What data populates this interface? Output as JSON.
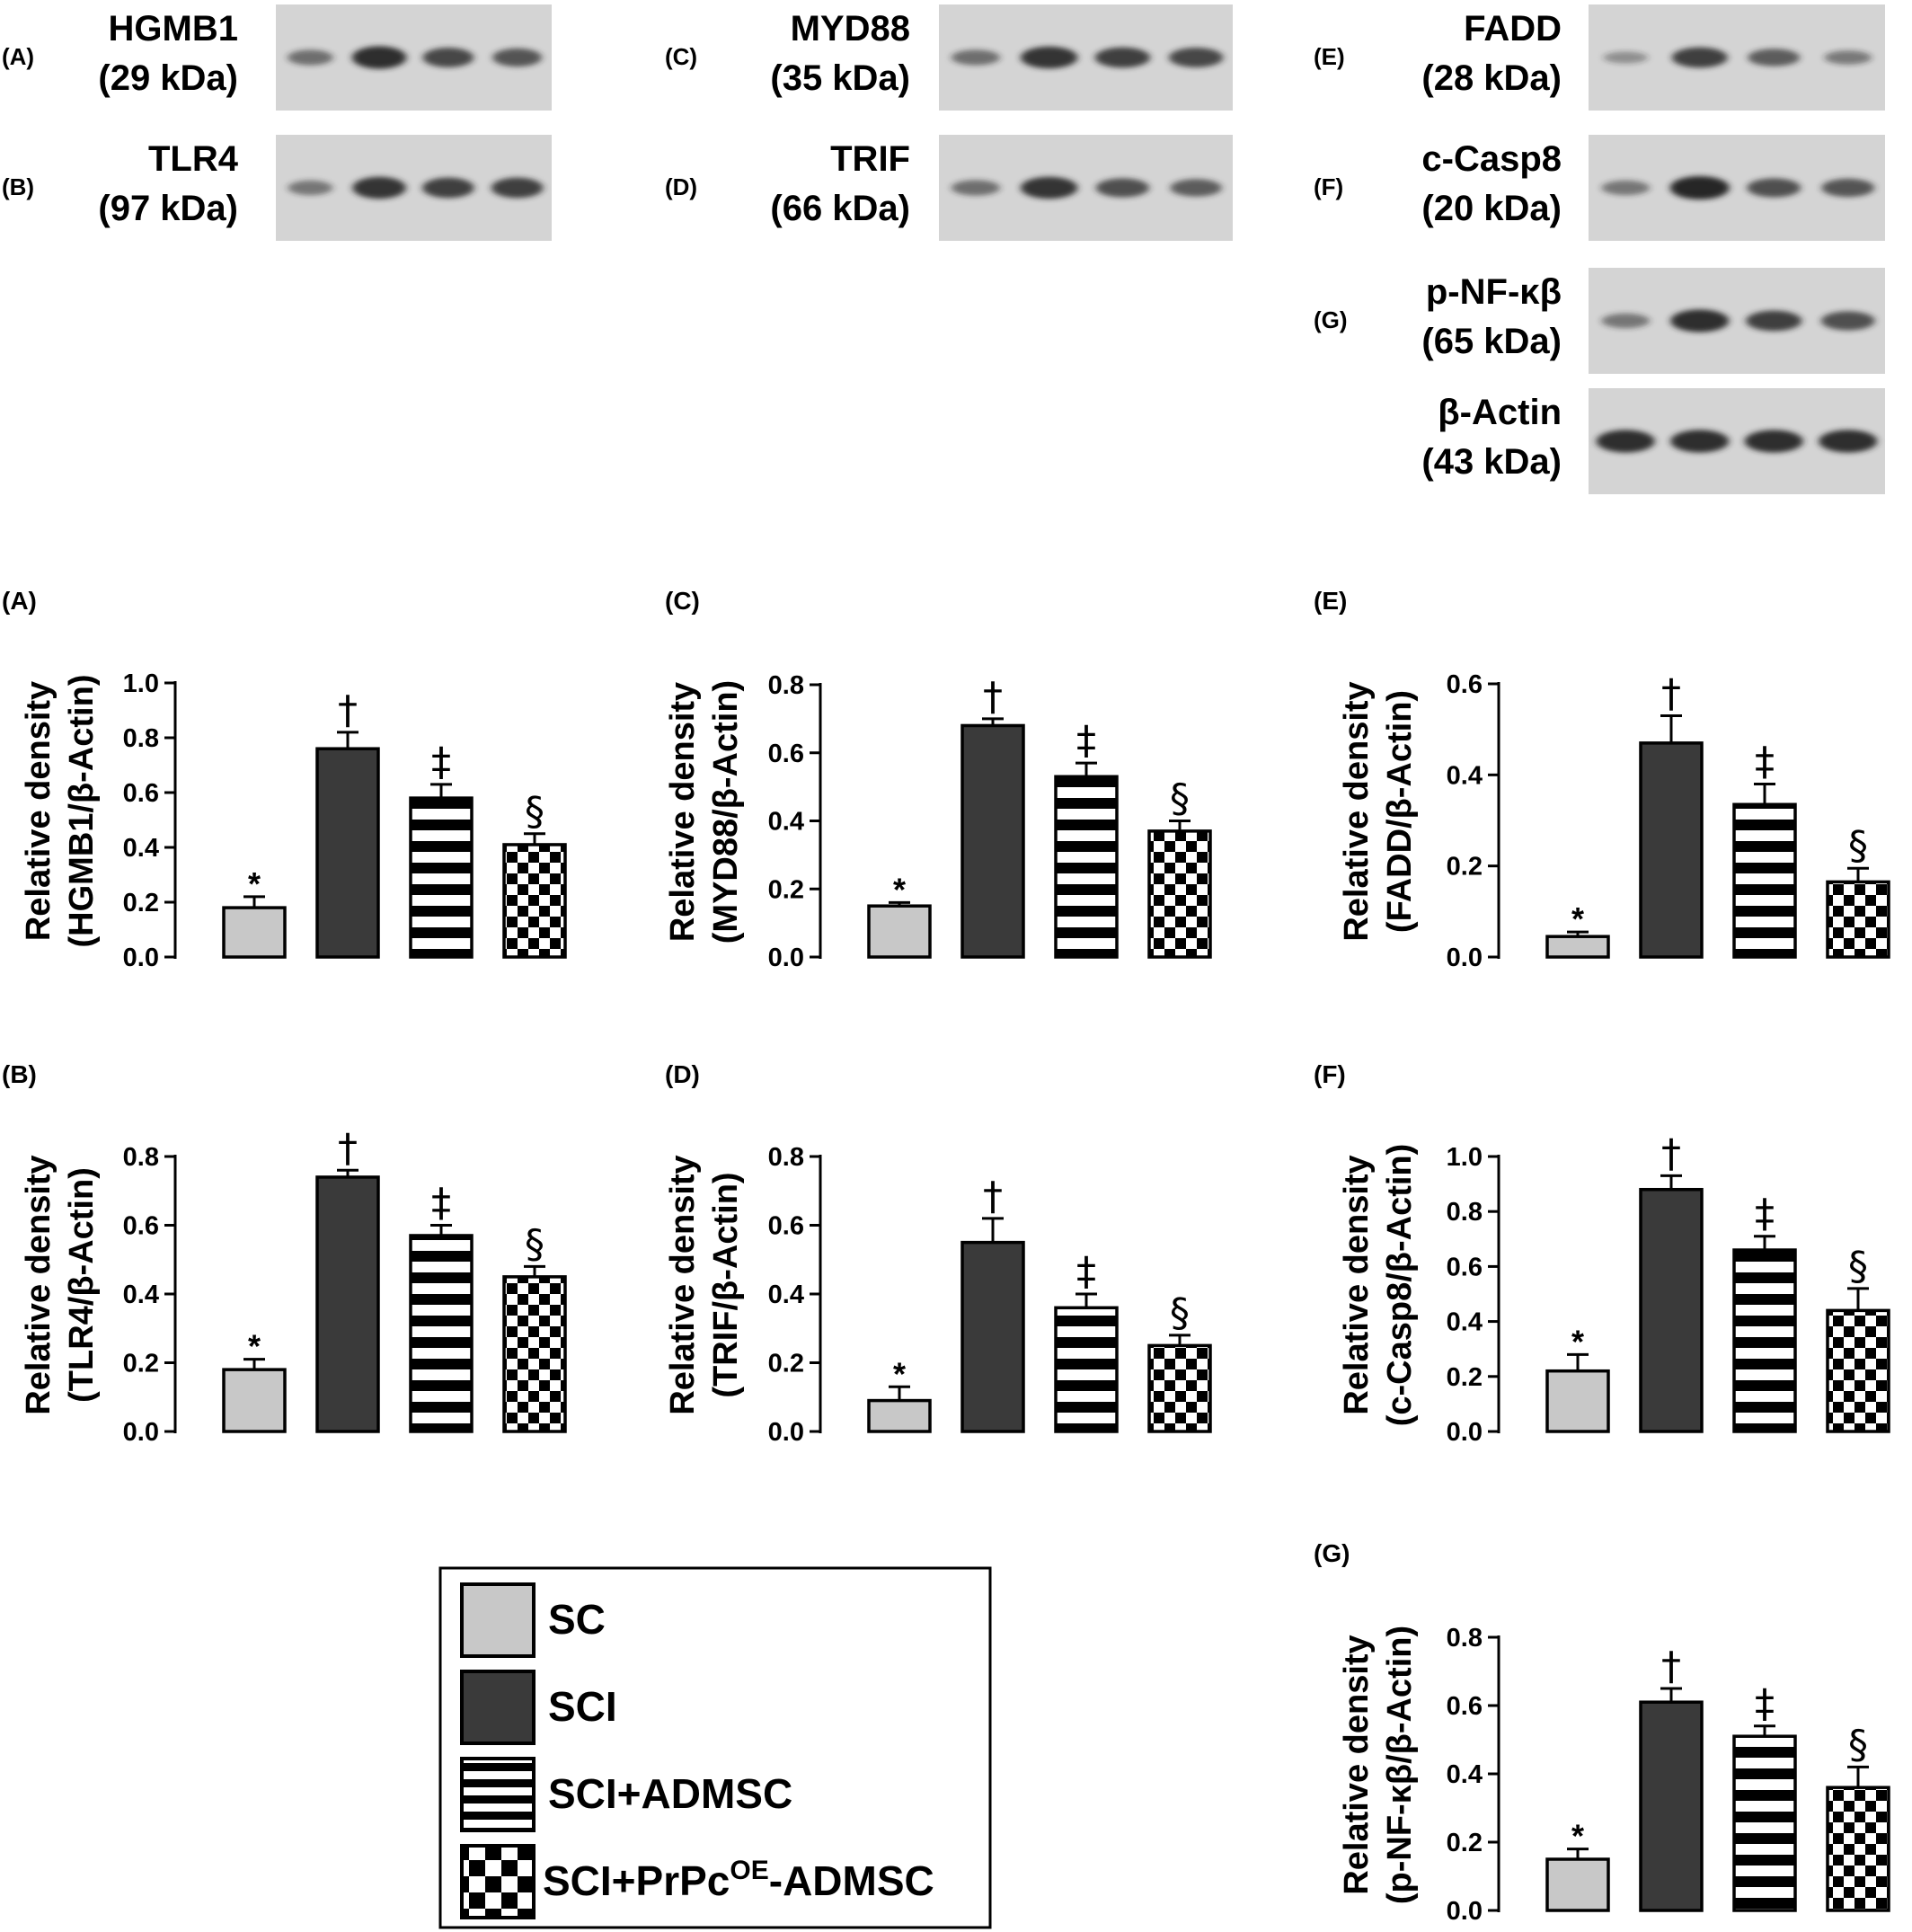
{
  "colors": {
    "sc": "#c8c8c8",
    "sci": "#3a3a3a",
    "pattern_stroke": "#000000",
    "blot_bg": "#d4d4d4",
    "band": "#262626"
  },
  "blots": [
    {
      "letter": "(A)",
      "name": "HGMB1",
      "kda": "(29 kDa)",
      "intensity": [
        0.45,
        0.95,
        0.75,
        0.65
      ]
    },
    {
      "letter": "(B)",
      "name": "TLR4",
      "kda": "(97 kDa)",
      "intensity": [
        0.4,
        0.9,
        0.8,
        0.8
      ]
    },
    {
      "letter": "(C)",
      "name": "MYD88",
      "kda": "(35 kDa)",
      "intensity": [
        0.45,
        0.9,
        0.8,
        0.75
      ]
    },
    {
      "letter": "(D)",
      "name": "TRIF",
      "kda": "(66 kDa)",
      "intensity": [
        0.45,
        0.9,
        0.7,
        0.6
      ]
    },
    {
      "letter": "(E)",
      "name": "FADD",
      "kda": "(28 kDa)",
      "intensity": [
        0.2,
        0.8,
        0.6,
        0.35
      ]
    },
    {
      "letter": "(F)",
      "name": "c-Casp8",
      "kda": "(20 kDa)",
      "intensity": [
        0.4,
        1.0,
        0.7,
        0.65
      ]
    },
    {
      "letter": "(G)",
      "name": "p-NF-κβ",
      "kda": "(65 kDa)",
      "intensity": [
        0.4,
        0.95,
        0.8,
        0.7
      ]
    },
    {
      "letter": "",
      "name": "β-Actin",
      "kda": "(43 kDa)",
      "intensity": [
        0.95,
        0.95,
        0.95,
        0.95
      ]
    }
  ],
  "legend": {
    "items": [
      {
        "label": "SC",
        "pattern": "solid-light"
      },
      {
        "label": "SCI",
        "pattern": "solid-dark"
      },
      {
        "label": "SCI+ADMSC",
        "pattern": "stripes"
      },
      {
        "label": "SCI+PrPc",
        "sup": "OE",
        "suffix": "-ADMSC",
        "pattern": "checker"
      }
    ]
  },
  "chart_data": [
    {
      "panel": "(A)",
      "type": "bar",
      "ylabel_line1": "Relative density",
      "ylabel_line2": "(HGMB1/β-Actin)",
      "ylim": [
        0,
        1.0
      ],
      "ticks": [
        "0.0",
        "0.2",
        "0.4",
        "0.6",
        "0.8",
        "1.0"
      ],
      "categories": [
        "SC",
        "SCI",
        "SCI+ADMSC",
        "SCI+PrPcOE-ADMSC"
      ],
      "values": [
        0.18,
        0.76,
        0.58,
        0.41
      ],
      "errors": [
        0.04,
        0.06,
        0.05,
        0.04
      ],
      "sig": [
        "*",
        "†",
        "‡",
        "§"
      ]
    },
    {
      "panel": "(C)",
      "type": "bar",
      "ylabel_line1": "Relative density",
      "ylabel_line2": "(MYD88/β-Actin)",
      "ylim": [
        0,
        0.8
      ],
      "ticks": [
        "0.0",
        "0.2",
        "0.4",
        "0.6",
        "0.8"
      ],
      "categories": [
        "SC",
        "SCI",
        "SCI+ADMSC",
        "SCI+PrPcOE-ADMSC"
      ],
      "values": [
        0.15,
        0.68,
        0.53,
        0.37
      ],
      "errors": [
        0.01,
        0.02,
        0.04,
        0.03
      ],
      "sig": [
        "*",
        "†",
        "‡",
        "§"
      ]
    },
    {
      "panel": "(E)",
      "type": "bar",
      "ylabel_line1": "Relative density",
      "ylabel_line2": "(FADD/β-Actin)",
      "ylim": [
        0,
        0.6
      ],
      "ticks": [
        "0.0",
        "0.2",
        "0.4",
        "0.6"
      ],
      "categories": [
        "SC",
        "SCI",
        "SCI+ADMSC",
        "SCI+PrPcOE-ADMSC"
      ],
      "values": [
        0.045,
        0.47,
        0.335,
        0.165
      ],
      "errors": [
        0.01,
        0.06,
        0.045,
        0.03
      ],
      "sig": [
        "*",
        "†",
        "‡",
        "§"
      ]
    },
    {
      "panel": "(B)",
      "type": "bar",
      "ylabel_line1": "Relative density",
      "ylabel_line2": "(TLR4/β-Actin)",
      "ylim": [
        0,
        0.8
      ],
      "ticks": [
        "0.0",
        "0.2",
        "0.4",
        "0.6",
        "0.8"
      ],
      "categories": [
        "SC",
        "SCI",
        "SCI+ADMSC",
        "SCI+PrPcOE-ADMSC"
      ],
      "values": [
        0.18,
        0.74,
        0.57,
        0.45
      ],
      "errors": [
        0.03,
        0.02,
        0.03,
        0.03
      ],
      "sig": [
        "*",
        "†",
        "‡",
        "§"
      ]
    },
    {
      "panel": "(D)",
      "type": "bar",
      "ylabel_line1": "Relative density",
      "ylabel_line2": "(TRIF/β-Actin)",
      "ylim": [
        0,
        0.8
      ],
      "ticks": [
        "0.0",
        "0.2",
        "0.4",
        "0.6",
        "0.8"
      ],
      "categories": [
        "SC",
        "SCI",
        "SCI+ADMSC",
        "SCI+PrPcOE-ADMSC"
      ],
      "values": [
        0.09,
        0.55,
        0.36,
        0.25
      ],
      "errors": [
        0.04,
        0.07,
        0.04,
        0.03
      ],
      "sig": [
        "*",
        "†",
        "‡",
        "§"
      ]
    },
    {
      "panel": "(F)",
      "type": "bar",
      "ylabel_line1": "Relative density",
      "ylabel_line2": "(c-Casp8/β-Actin)",
      "ylim": [
        0,
        1.0
      ],
      "ticks": [
        "0.0",
        "0.2",
        "0.4",
        "0.6",
        "0.8",
        "1.0"
      ],
      "categories": [
        "SC",
        "SCI",
        "SCI+ADMSC",
        "SCI+PrPcOE-ADMSC"
      ],
      "values": [
        0.22,
        0.88,
        0.66,
        0.44
      ],
      "errors": [
        0.06,
        0.05,
        0.05,
        0.08
      ],
      "sig": [
        "*",
        "†",
        "‡",
        "§"
      ]
    },
    {
      "panel": "(G)",
      "type": "bar",
      "ylabel_line1": "Relative density",
      "ylabel_line2": "(p-NF-κβ/β-Actin)",
      "ylim": [
        0,
        0.8
      ],
      "ticks": [
        "0.0",
        "0.2",
        "0.4",
        "0.6",
        "0.8"
      ],
      "categories": [
        "SC",
        "SCI",
        "SCI+ADMSC",
        "SCI+PrPcOE-ADMSC"
      ],
      "values": [
        0.15,
        0.61,
        0.51,
        0.36
      ],
      "errors": [
        0.03,
        0.04,
        0.03,
        0.06
      ],
      "sig": [
        "*",
        "†",
        "‡",
        "§"
      ]
    }
  ]
}
